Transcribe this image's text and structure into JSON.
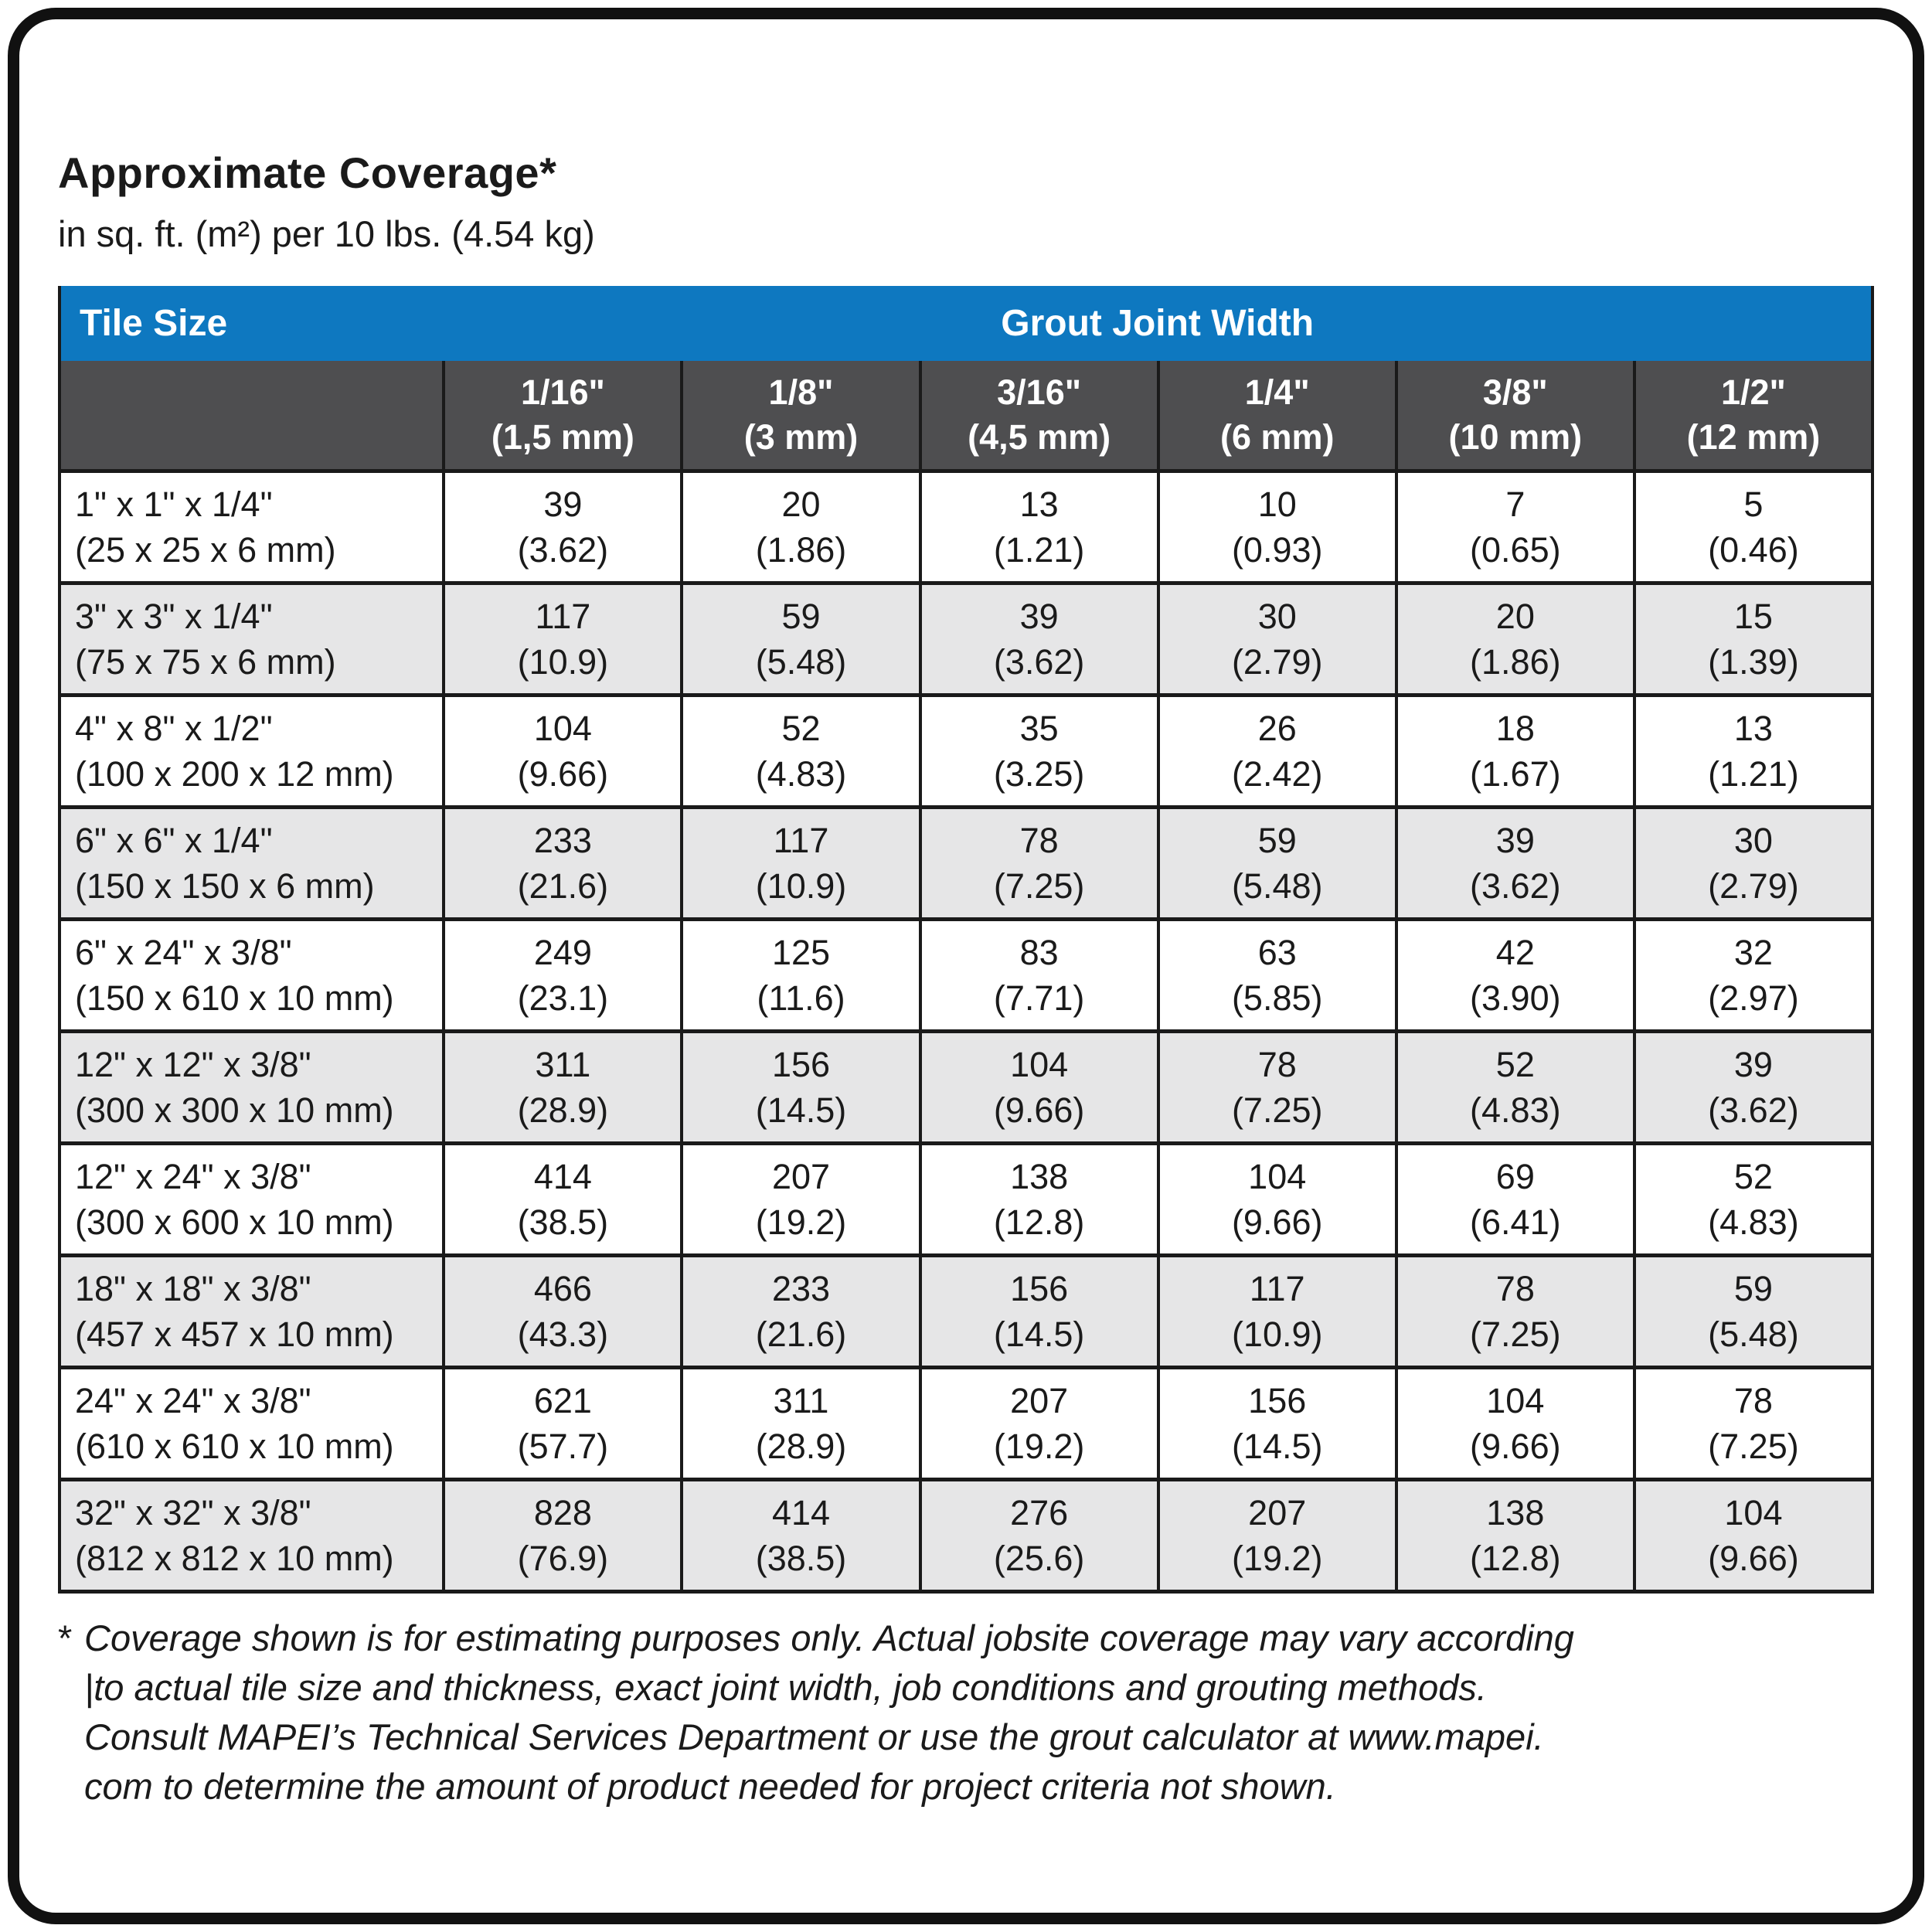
{
  "page": {
    "title": "Approximate Coverage*",
    "subtitle": "in sq. ft. (m²) per 10 lbs. (4.54 kg)"
  },
  "colors": {
    "header_blue": "#0e78c0",
    "header_gray": "#4e4e50",
    "row_alt_gray": "#e6e6e7",
    "border_black": "#1a1a1a"
  },
  "table": {
    "header": {
      "tile_size": "Tile Size",
      "grout_joint_width": "Grout Joint Width"
    },
    "columns": [
      {
        "inch": "1/16\"",
        "metric": "(1,5 mm)"
      },
      {
        "inch": "1/8\"",
        "metric": "(3 mm)"
      },
      {
        "inch": "3/16\"",
        "metric": "(4,5 mm)"
      },
      {
        "inch": "1/4\"",
        "metric": "(6 mm)"
      },
      {
        "inch": "3/8\"",
        "metric": "(10 mm)"
      },
      {
        "inch": "1/2\"",
        "metric": "(12 mm)"
      }
    ],
    "rows": [
      {
        "size_in": "1\" x 1\" x 1/4\"",
        "size_mm": "(25 x 25 x 6 mm)",
        "values": [
          [
            "39",
            "(3.62)"
          ],
          [
            "20",
            "(1.86)"
          ],
          [
            "13",
            "(1.21)"
          ],
          [
            "10",
            "(0.93)"
          ],
          [
            "7",
            "(0.65)"
          ],
          [
            "5",
            "(0.46)"
          ]
        ]
      },
      {
        "size_in": "3\" x 3\" x 1/4\"",
        "size_mm": "(75 x 75 x 6 mm)",
        "values": [
          [
            "117",
            "(10.9)"
          ],
          [
            "59",
            "(5.48)"
          ],
          [
            "39",
            "(3.62)"
          ],
          [
            "30",
            "(2.79)"
          ],
          [
            "20",
            "(1.86)"
          ],
          [
            "15",
            "(1.39)"
          ]
        ]
      },
      {
        "size_in": "4\" x 8\" x 1/2\"",
        "size_mm": "(100 x 200 x 12 mm)",
        "values": [
          [
            "104",
            "(9.66)"
          ],
          [
            "52",
            "(4.83)"
          ],
          [
            "35",
            "(3.25)"
          ],
          [
            "26",
            "(2.42)"
          ],
          [
            "18",
            "(1.67)"
          ],
          [
            "13",
            "(1.21)"
          ]
        ]
      },
      {
        "size_in": "6\" x 6\" x 1/4\"",
        "size_mm": "(150 x 150 x 6 mm)",
        "values": [
          [
            "233",
            "(21.6)"
          ],
          [
            "117",
            "(10.9)"
          ],
          [
            "78",
            "(7.25)"
          ],
          [
            "59",
            "(5.48)"
          ],
          [
            "39",
            "(3.62)"
          ],
          [
            "30",
            "(2.79)"
          ]
        ]
      },
      {
        "size_in": "6\" x 24\" x 3/8\"",
        "size_mm": "(150 x 610 x 10 mm)",
        "values": [
          [
            "249",
            "(23.1)"
          ],
          [
            "125",
            "(11.6)"
          ],
          [
            "83",
            "(7.71)"
          ],
          [
            "63",
            "(5.85)"
          ],
          [
            "42",
            "(3.90)"
          ],
          [
            "32",
            "(2.97)"
          ]
        ]
      },
      {
        "size_in": "12\" x 12\" x 3/8\"",
        "size_mm": "(300 x 300 x 10 mm)",
        "values": [
          [
            "311",
            "(28.9)"
          ],
          [
            "156",
            "(14.5)"
          ],
          [
            "104",
            "(9.66)"
          ],
          [
            "78",
            "(7.25)"
          ],
          [
            "52",
            "(4.83)"
          ],
          [
            "39",
            "(3.62)"
          ]
        ]
      },
      {
        "size_in": "12\" x 24\" x 3/8\"",
        "size_mm": "(300 x 600 x 10 mm)",
        "values": [
          [
            "414",
            "(38.5)"
          ],
          [
            "207",
            "(19.2)"
          ],
          [
            "138",
            "(12.8)"
          ],
          [
            "104",
            "(9.66)"
          ],
          [
            "69",
            "(6.41)"
          ],
          [
            "52",
            "(4.83)"
          ]
        ]
      },
      {
        "size_in": "18\" x 18\" x 3/8\"",
        "size_mm": "(457 x 457 x 10 mm)",
        "values": [
          [
            "466",
            "(43.3)"
          ],
          [
            "233",
            "(21.6)"
          ],
          [
            "156",
            "(14.5)"
          ],
          [
            "117",
            "(10.9)"
          ],
          [
            "78",
            "(7.25)"
          ],
          [
            "59",
            "(5.48)"
          ]
        ]
      },
      {
        "size_in": "24\" x 24\" x 3/8\"",
        "size_mm": "(610 x 610 x 10 mm)",
        "values": [
          [
            "621",
            "(57.7)"
          ],
          [
            "311",
            "(28.9)"
          ],
          [
            "207",
            "(19.2)"
          ],
          [
            "156",
            "(14.5)"
          ],
          [
            "104",
            "(9.66)"
          ],
          [
            "78",
            "(7.25)"
          ]
        ]
      },
      {
        "size_in": "32\" x 32\" x 3/8\"",
        "size_mm": "(812 x 812 x 10 mm)",
        "values": [
          [
            "828",
            "(76.9)"
          ],
          [
            "414",
            "(38.5)"
          ],
          [
            "276",
            "(25.6)"
          ],
          [
            "207",
            "(19.2)"
          ],
          [
            "138",
            "(12.8)"
          ],
          [
            "104",
            "(9.66)"
          ]
        ]
      }
    ]
  },
  "footnote": {
    "marker": "*",
    "lines": [
      "Coverage shown is for estimating purposes only. Actual jobsite coverage may vary according",
      "|to actual tile size and thickness, exact joint width, job conditions and grouting methods.",
      "Consult MAPEI’s Technical Services Department or use the grout calculator at www.mapei.",
      "com to determine the amount of product needed for project criteria not shown."
    ]
  }
}
